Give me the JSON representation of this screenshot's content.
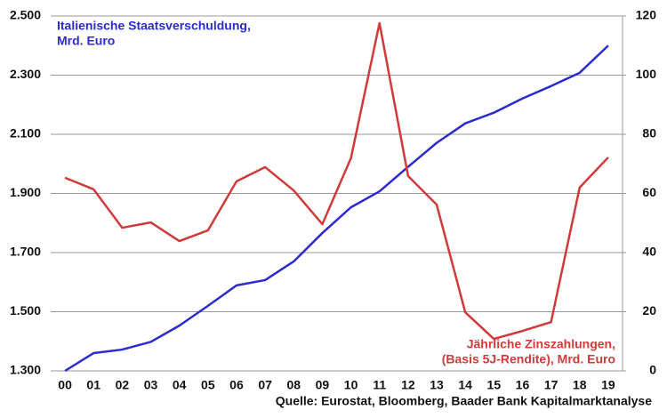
{
  "chart_data": {
    "type": "line",
    "categories": [
      "00",
      "01",
      "02",
      "03",
      "04",
      "05",
      "06",
      "07",
      "08",
      "09",
      "10",
      "11",
      "12",
      "13",
      "14",
      "15",
      "16",
      "17",
      "18",
      "19"
    ],
    "series": [
      {
        "name": [
          "Italienische Staatsverschuldung,",
          "Mrd. Euro"
        ],
        "color": "#2b2bd0",
        "axis": "y",
        "values": [
          1300,
          1360,
          1372,
          1398,
          1453,
          1520,
          1589,
          1607,
          1670,
          1766,
          1853,
          1907,
          1990,
          2071,
          2137,
          2173,
          2221,
          2263,
          2308,
          2400
        ]
      },
      {
        "name": [
          "Jährliche Zinszahlungen,",
          "(Basis 5J-Rendite), Mrd. Euro"
        ],
        "color": "#d03a3a",
        "axis": "y2",
        "values": [
          65.3,
          61.4,
          48.4,
          50.2,
          43.9,
          47.5,
          64.1,
          68.9,
          61,
          49.6,
          71.9,
          117.6,
          65.9,
          56.2,
          19.8,
          10.8,
          13.5,
          16.5,
          62,
          72.2
        ]
      }
    ],
    "ylim": [
      1300,
      2500
    ],
    "yticks": [
      {
        "value": 1300,
        "label": "1.300"
      },
      {
        "value": 1500,
        "label": "1.500"
      },
      {
        "value": 1700,
        "label": "1.700"
      },
      {
        "value": 1900,
        "label": "1.900"
      },
      {
        "value": 2100,
        "label": "2.100"
      },
      {
        "value": 2300,
        "label": "2.300"
      },
      {
        "value": 2500,
        "label": "2.500"
      }
    ],
    "y2lim": [
      0,
      120
    ],
    "y2ticks": [
      0,
      20,
      40,
      60,
      80,
      100,
      120
    ],
    "grid": true,
    "source": "Quelle: Eurostat, Bloomberg, Baader Bank Kapitalmarktanalyse"
  }
}
